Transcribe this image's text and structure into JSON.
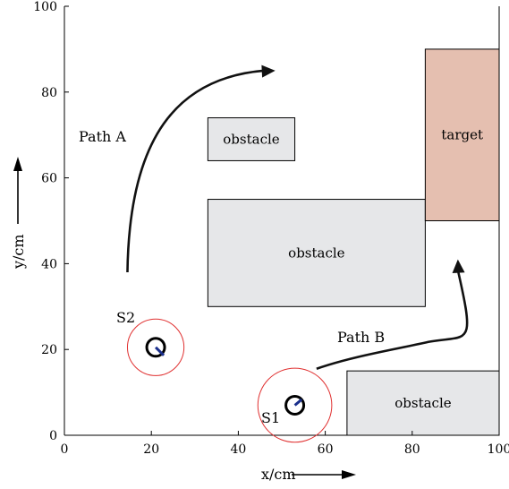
{
  "axes": {
    "x_label": "x/cm",
    "y_label": "y/cm",
    "x_range": [
      0,
      100
    ],
    "y_range": [
      0,
      100
    ],
    "x_ticks": [
      "0",
      "20",
      "40",
      "60",
      "80",
      "100"
    ],
    "y_ticks": [
      "0",
      "20",
      "40",
      "60",
      "80",
      "100"
    ]
  },
  "regions": [
    {
      "label": "obstacle",
      "x": [
        33,
        53
      ],
      "y": [
        64,
        74
      ],
      "color": "#e6e7e9"
    },
    {
      "label": "obstacle",
      "x": [
        33,
        83
      ],
      "y": [
        30,
        55
      ],
      "color": "#e6e7e9"
    },
    {
      "label": "obstacle",
      "x": [
        65,
        100
      ],
      "y": [
        0,
        15
      ],
      "color": "#e6e7e9"
    },
    {
      "label": "target",
      "x": [
        83,
        100
      ],
      "y": [
        50,
        90
      ],
      "color": "#e5bfb0"
    }
  ],
  "sensors": [
    {
      "label": "S2",
      "center": [
        21,
        20.5
      ],
      "radius": 6.5
    },
    {
      "label": "S1",
      "center": [
        53,
        7
      ],
      "radius": 8.5
    }
  ],
  "paths": [
    {
      "label": "Path A",
      "from": [
        14.5,
        38
      ],
      "to": [
        48.5,
        85
      ]
    },
    {
      "label": "Path B",
      "from": [
        58,
        15.5
      ],
      "to": [
        90.5,
        41
      ]
    }
  ]
}
